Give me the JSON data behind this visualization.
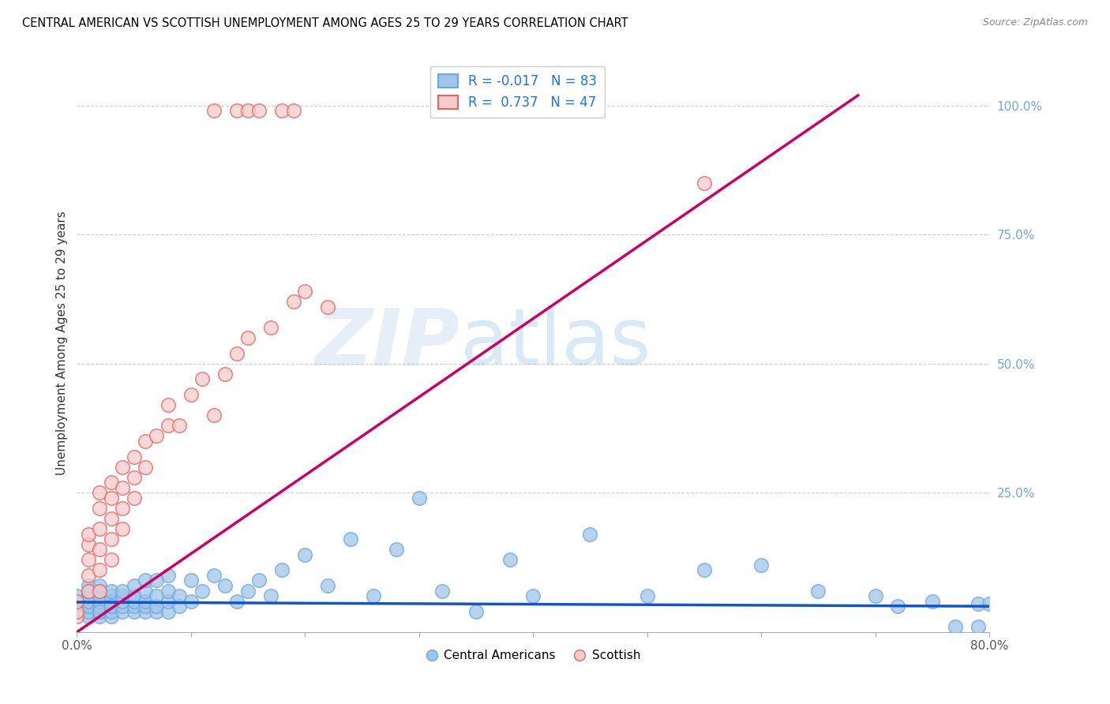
{
  "title": "CENTRAL AMERICAN VS SCOTTISH UNEMPLOYMENT AMONG AGES 25 TO 29 YEARS CORRELATION CHART",
  "source": "Source: ZipAtlas.com",
  "ylabel": "Unemployment Among Ages 25 to 29 years",
  "xlim": [
    0.0,
    0.8
  ],
  "ylim": [
    -0.02,
    1.1
  ],
  "xticks": [
    0.0,
    0.1,
    0.2,
    0.3,
    0.4,
    0.5,
    0.6,
    0.7,
    0.8
  ],
  "xtick_labels": [
    "0.0%",
    "",
    "",
    "",
    "",
    "",
    "",
    "",
    "80.0%"
  ],
  "yticks_right": [
    0.25,
    0.5,
    0.75,
    1.0
  ],
  "ytick_labels_right": [
    "25.0%",
    "50.0%",
    "75.0%",
    "100.0%"
  ],
  "blue_color": "#9fc5e8",
  "blue_edge_color": "#6fa8dc",
  "pink_color": "#f4cccc",
  "pink_edge_color": "#e06666",
  "blue_line_color": "#1155cc",
  "pink_line_color": "#cc0066",
  "R_blue": -0.017,
  "N_blue": 83,
  "R_pink": 0.737,
  "N_pink": 47,
  "watermark_zip": "ZIP",
  "watermark_atlas": "atlas",
  "legend_label_blue": "Central Americans",
  "legend_label_pink": "Scottish",
  "blue_scatter_x": [
    0.0,
    0.0,
    0.0,
    0.01,
    0.01,
    0.01,
    0.01,
    0.01,
    0.01,
    0.01,
    0.02,
    0.02,
    0.02,
    0.02,
    0.02,
    0.02,
    0.02,
    0.02,
    0.02,
    0.03,
    0.03,
    0.03,
    0.03,
    0.03,
    0.03,
    0.03,
    0.04,
    0.04,
    0.04,
    0.04,
    0.04,
    0.05,
    0.05,
    0.05,
    0.05,
    0.05,
    0.06,
    0.06,
    0.06,
    0.06,
    0.06,
    0.07,
    0.07,
    0.07,
    0.07,
    0.08,
    0.08,
    0.08,
    0.08,
    0.09,
    0.09,
    0.1,
    0.1,
    0.11,
    0.12,
    0.13,
    0.14,
    0.15,
    0.16,
    0.17,
    0.18,
    0.2,
    0.22,
    0.24,
    0.26,
    0.28,
    0.3,
    0.32,
    0.35,
    0.38,
    0.4,
    0.45,
    0.5,
    0.55,
    0.6,
    0.65,
    0.7,
    0.72,
    0.75,
    0.77,
    0.79,
    0.79,
    0.8
  ],
  "blue_scatter_y": [
    0.02,
    0.035,
    0.05,
    0.01,
    0.02,
    0.03,
    0.04,
    0.05,
    0.06,
    0.07,
    0.01,
    0.02,
    0.02,
    0.03,
    0.04,
    0.05,
    0.06,
    0.07,
    0.02,
    0.01,
    0.02,
    0.03,
    0.04,
    0.05,
    0.06,
    0.03,
    0.02,
    0.03,
    0.04,
    0.05,
    0.06,
    0.02,
    0.03,
    0.04,
    0.05,
    0.07,
    0.02,
    0.03,
    0.04,
    0.06,
    0.08,
    0.02,
    0.03,
    0.05,
    0.08,
    0.02,
    0.04,
    0.06,
    0.09,
    0.03,
    0.05,
    0.04,
    0.08,
    0.06,
    0.09,
    0.07,
    0.04,
    0.06,
    0.08,
    0.05,
    0.1,
    0.13,
    0.07,
    0.16,
    0.05,
    0.14,
    0.24,
    0.06,
    0.02,
    0.12,
    0.05,
    0.17,
    0.05,
    0.1,
    0.11,
    0.06,
    0.05,
    0.03,
    0.04,
    -0.01,
    -0.01,
    0.035,
    0.035
  ],
  "pink_scatter_x": [
    0.0,
    0.0,
    0.0,
    0.01,
    0.01,
    0.01,
    0.01,
    0.01,
    0.02,
    0.02,
    0.02,
    0.02,
    0.02,
    0.02,
    0.03,
    0.03,
    0.03,
    0.03,
    0.03,
    0.04,
    0.04,
    0.04,
    0.04,
    0.05,
    0.05,
    0.05,
    0.06,
    0.06,
    0.07,
    0.08,
    0.08,
    0.09,
    0.1,
    0.11,
    0.12,
    0.13,
    0.14,
    0.15,
    0.17,
    0.19,
    0.2,
    0.22,
    0.55
  ],
  "pink_scatter_y": [
    0.01,
    0.02,
    0.04,
    0.06,
    0.09,
    0.12,
    0.15,
    0.17,
    0.06,
    0.1,
    0.14,
    0.18,
    0.22,
    0.25,
    0.12,
    0.16,
    0.2,
    0.24,
    0.27,
    0.18,
    0.22,
    0.26,
    0.3,
    0.24,
    0.28,
    0.32,
    0.3,
    0.35,
    0.36,
    0.38,
    0.42,
    0.38,
    0.44,
    0.47,
    0.4,
    0.48,
    0.52,
    0.55,
    0.57,
    0.62,
    0.64,
    0.61,
    0.85
  ],
  "top_pink_x": [
    0.12,
    0.14,
    0.15,
    0.16,
    0.18,
    0.19
  ],
  "top_pink_y": [
    0.99,
    0.99,
    0.99,
    0.99,
    0.99,
    0.99
  ],
  "blue_trendline_x": [
    0.0,
    0.8
  ],
  "blue_trendline_y": [
    0.038,
    0.03
  ],
  "pink_trendline_x": [
    0.0,
    0.685
  ],
  "pink_trendline_y": [
    -0.02,
    1.02
  ]
}
